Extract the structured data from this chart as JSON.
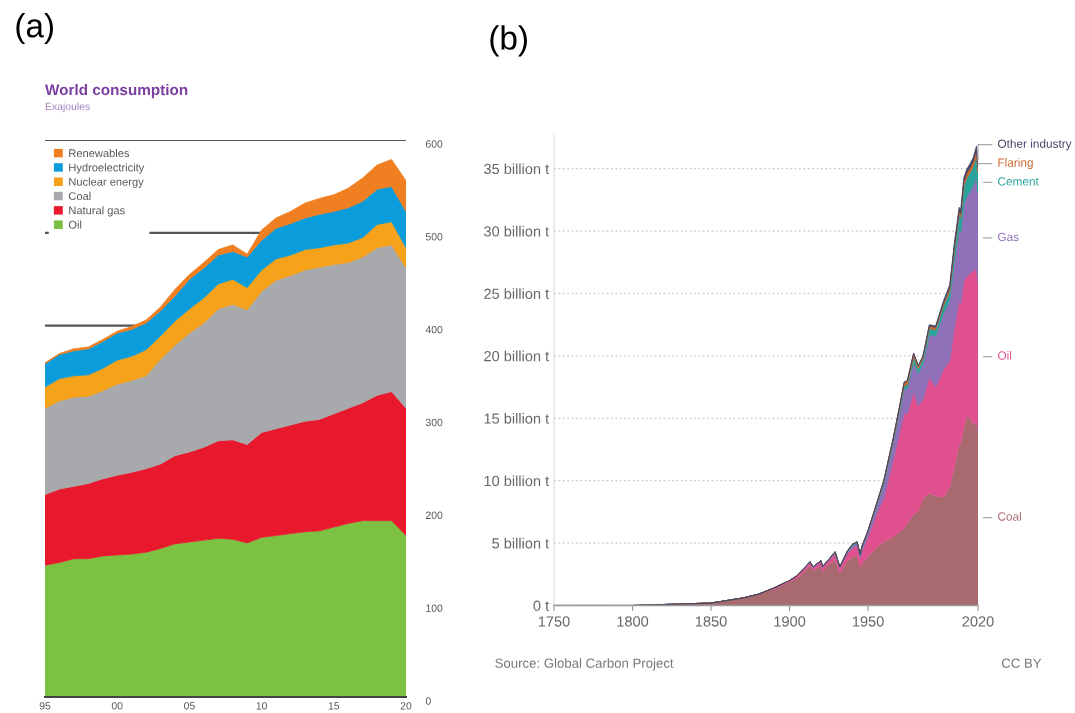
{
  "chart_data": [
    {
      "type": "area",
      "stacked": true,
      "title": "World consumption",
      "subtitle": "Exajoules",
      "annotations": [
        "(a)"
      ],
      "x": [
        1995,
        1996,
        1997,
        1998,
        1999,
        2000,
        2001,
        2002,
        2003,
        2004,
        2005,
        2006,
        2007,
        2008,
        2009,
        2010,
        2011,
        2012,
        2013,
        2014,
        2015,
        2016,
        2017,
        2018,
        2019,
        2020
      ],
      "series": [
        {
          "name": "Oil",
          "color": "#7dc142",
          "values": [
            142,
            145,
            149,
            149,
            152,
            153,
            154,
            156,
            160,
            165,
            167,
            169,
            171,
            170,
            166,
            172,
            174,
            176,
            178,
            179,
            183,
            187,
            190,
            190,
            190,
            174
          ]
        },
        {
          "name": "Natural gas",
          "color": "#e8192c",
          "values": [
            76,
            79,
            78,
            81,
            83,
            86,
            88,
            90,
            91,
            95,
            97,
            100,
            105,
            107,
            106,
            113,
            115,
            117,
            119,
            120,
            122,
            124,
            127,
            135,
            139,
            137
          ]
        },
        {
          "name": "Coal",
          "color": "#a7a9ac",
          "values": [
            93,
            95,
            96,
            94,
            95,
            98,
            99,
            100,
            113,
            119,
            128,
            134,
            142,
            146,
            145,
            152,
            160,
            161,
            163,
            164,
            161,
            157,
            157,
            159,
            158,
            151
          ]
        },
        {
          "name": "Nuclear energy",
          "color": "#f7a21b",
          "values": [
            23,
            24,
            23,
            23,
            24,
            26,
            26,
            28,
            25,
            26,
            26,
            27,
            27,
            27,
            24,
            23,
            23,
            22,
            22,
            21,
            21,
            21,
            21,
            25,
            25,
            22
          ]
        },
        {
          "name": "Hydroelectricity",
          "color": "#0b9ddb",
          "values": [
            25,
            26,
            27,
            28,
            29,
            29,
            29,
            29,
            27,
            27,
            32,
            32,
            31,
            30,
            33,
            32,
            33,
            34,
            34,
            36,
            36,
            38,
            39,
            38,
            38,
            39
          ]
        },
        {
          "name": "Renewables",
          "color": "#f07f22",
          "values": [
            1,
            1,
            2,
            2,
            2,
            2,
            3,
            3,
            4,
            7,
            5,
            6,
            6,
            7,
            3,
            11,
            11,
            13,
            16,
            17,
            18,
            21,
            25,
            26,
            29,
            33
          ]
        }
      ],
      "xlim": [
        1995,
        2020
      ],
      "xticks": [
        {
          "value": 1995,
          "label": "95"
        },
        {
          "value": 2000,
          "label": "00"
        },
        {
          "value": 2005,
          "label": "05"
        },
        {
          "value": 2010,
          "label": "10"
        },
        {
          "value": 2015,
          "label": "15"
        },
        {
          "value": 2020,
          "label": "20"
        }
      ],
      "ylim": [
        0,
        600
      ],
      "yticks": [
        0,
        100,
        200,
        300,
        400,
        500,
        600
      ],
      "grid": "y",
      "legend": "top left"
    },
    {
      "type": "area",
      "stacked": true,
      "annotations": [
        "(b)",
        "Source: Global Carbon Project",
        "CC BY"
      ],
      "x": [
        1750,
        1800,
        1850,
        1860,
        1870,
        1880,
        1890,
        1900,
        1905,
        1910,
        1913,
        1915,
        1920,
        1921,
        1925,
        1929,
        1932,
        1937,
        1940,
        1943,
        1945,
        1946,
        1950,
        1955,
        1960,
        1966,
        1970,
        1973,
        1975,
        1979,
        1982,
        1985,
        1989,
        1993,
        1998,
        2002,
        2005,
        2008,
        2009,
        2011,
        2013,
        2015,
        2017,
        2019,
        2020
      ],
      "series": [
        {
          "name": "Coal",
          "color": "#a86a6e",
          "values": [
            0,
            0,
            0.2,
            0.4,
            0.6,
            0.9,
            1.3,
            1.9,
            2.2,
            2.8,
            3.2,
            2.8,
            3.2,
            2.7,
            3.3,
            3.7,
            2.6,
            3.6,
            3.9,
            4.0,
            3.1,
            3.4,
            3.9,
            4.6,
            5.1,
            5.5,
            5.9,
            6.2,
            6.6,
            7.3,
            7.6,
            8.6,
            9.0,
            8.8,
            8.7,
            9.5,
            11.2,
            12.9,
            13.0,
            14.3,
            15.2,
            15.0,
            14.5,
            14.7,
            14.1
          ]
        },
        {
          "name": "Oil",
          "color": "#e0508f",
          "values": [
            0,
            0,
            0,
            0,
            0,
            0,
            0.1,
            0.1,
            0.2,
            0.2,
            0.2,
            0.2,
            0.3,
            0.3,
            0.3,
            0.4,
            0.4,
            0.6,
            0.7,
            0.8,
            0.7,
            0.9,
            1.6,
            2.6,
            3.5,
            6.1,
            7.9,
            9.2,
            8.8,
            9.8,
            8.4,
            7.9,
            9.3,
            8.7,
            10.2,
            10.1,
            11.1,
            11.5,
            11.2,
            11.7,
            11.2,
            11.6,
            12.3,
            12.3,
            11.7
          ]
        },
        {
          "name": "Gas",
          "color": "#9070b8",
          "values": [
            0,
            0,
            0,
            0,
            0,
            0,
            0,
            0,
            0,
            0.1,
            0.1,
            0.1,
            0.1,
            0.1,
            0.1,
            0.1,
            0.1,
            0.1,
            0.2,
            0.2,
            0.2,
            0.3,
            0.4,
            0.6,
            1.1,
            1.4,
            1.6,
            1.9,
            2.0,
            2.4,
            2.6,
            2.9,
            3.4,
            4.1,
            4.5,
            4.9,
            5.3,
            5.8,
            5.7,
            6.2,
            6.4,
            6.6,
            6.9,
            7.4,
            7.3
          ]
        },
        {
          "name": "Cement",
          "color": "#2aa39a",
          "values": [
            0,
            0,
            0,
            0,
            0,
            0,
            0,
            0,
            0,
            0,
            0,
            0,
            0,
            0,
            0,
            0.1,
            0,
            0.1,
            0.1,
            0.1,
            0.1,
            0.1,
            0.1,
            0.1,
            0.2,
            0.2,
            0.3,
            0.3,
            0.3,
            0.4,
            0.4,
            0.4,
            0.5,
            0.5,
            0.6,
            0.7,
            0.9,
            1.1,
            1.2,
            1.4,
            1.5,
            1.5,
            1.5,
            1.6,
            1.6
          ]
        },
        {
          "name": "Flaring",
          "color": "#cc6630",
          "values": [
            0,
            0,
            0,
            0,
            0,
            0,
            0,
            0,
            0,
            0,
            0,
            0,
            0,
            0,
            0,
            0,
            0,
            0,
            0,
            0,
            0,
            0,
            0,
            0.1,
            0.1,
            0.2,
            0.2,
            0.3,
            0.3,
            0.3,
            0.2,
            0.2,
            0.2,
            0.2,
            0.2,
            0.3,
            0.3,
            0.3,
            0.3,
            0.4,
            0.4,
            0.4,
            0.4,
            0.5,
            0.4
          ]
        },
        {
          "name": "Other industry",
          "color": "#444466",
          "values": [
            0,
            0,
            0,
            0,
            0,
            0,
            0,
            0,
            0,
            0,
            0,
            0,
            0,
            0,
            0,
            0,
            0,
            0,
            0,
            0,
            0,
            0,
            0,
            0,
            0,
            0,
            0,
            0,
            0,
            0,
            0,
            0,
            0.1,
            0.1,
            0.2,
            0.2,
            0.3,
            0.3,
            0.3,
            0.3,
            0.3,
            0.3,
            0.3,
            0.3,
            0.3
          ]
        }
      ],
      "xlim": [
        1750,
        2020
      ],
      "xticks": [
        1750,
        1800,
        1850,
        1900,
        1950,
        2020
      ],
      "ylim": [
        0,
        37.7
      ],
      "yticks": [
        {
          "value": 0,
          "label": "0 t"
        },
        {
          "value": 5,
          "label": "5 billion t"
        },
        {
          "value": 10,
          "label": "10 billion t"
        },
        {
          "value": 15,
          "label": "15 billion t"
        },
        {
          "value": 20,
          "label": "20 billion t"
        },
        {
          "value": 25,
          "label": "25 billion t"
        },
        {
          "value": 30,
          "label": "30 billion t"
        },
        {
          "value": 35,
          "label": "35 billion t"
        }
      ],
      "grid": "y"
    }
  ]
}
